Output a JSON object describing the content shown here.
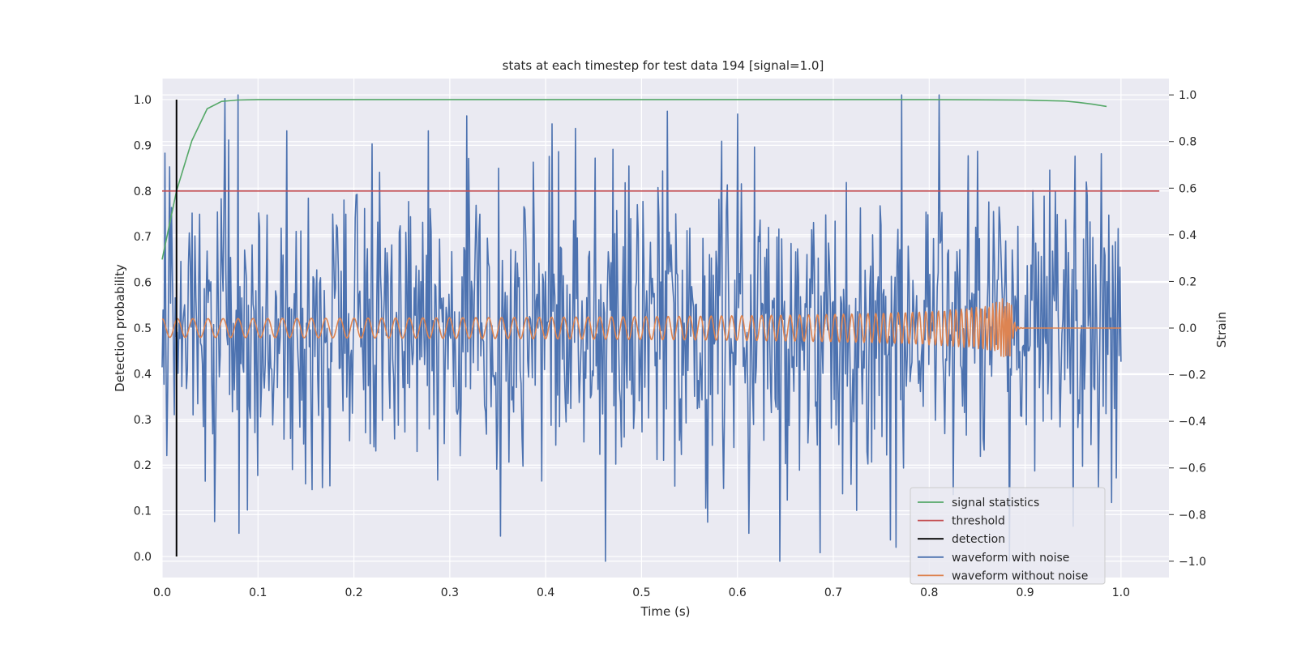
{
  "chart_data": {
    "type": "line",
    "title": "stats at each timestep for test data 194 [signal=1.0]",
    "xlabel": "Time (s)",
    "ylabel": "Detection probability",
    "y2label": "Strain",
    "xlim": [
      0.0,
      1.05
    ],
    "ylim": [
      -0.046,
      1.046
    ],
    "y2lim": [
      -1.07,
      1.07
    ],
    "x_ticks": [
      "0.0",
      "0.1",
      "0.2",
      "0.3",
      "0.4",
      "0.5",
      "0.6",
      "0.7",
      "0.8",
      "0.9",
      "1.0"
    ],
    "y_ticks": [
      "0.0",
      "0.1",
      "0.2",
      "0.3",
      "0.4",
      "0.5",
      "0.6",
      "0.7",
      "0.8",
      "0.9",
      "1.0"
    ],
    "y2_ticks": [
      "−1.0",
      "−0.8",
      "−0.6",
      "−0.4",
      "−0.2",
      "0.0",
      "0.2",
      "0.4",
      "0.6",
      "0.8",
      "1.0"
    ],
    "grid": true,
    "legend_position": "lower-right",
    "series": [
      {
        "name": "signal statistics",
        "axis": "left",
        "color": "#55a868",
        "x": [
          0.0,
          0.015,
          0.031,
          0.047,
          0.062,
          0.078,
          0.1,
          0.2,
          0.3,
          0.4,
          0.5,
          0.6,
          0.7,
          0.8,
          0.9,
          0.94,
          0.955,
          0.97,
          0.985
        ],
        "y": [
          0.65,
          0.8,
          0.91,
          0.98,
          0.996,
          0.999,
          1.0,
          1.0,
          1.0,
          1.0,
          1.0,
          1.0,
          1.0,
          1.0,
          0.999,
          0.997,
          0.994,
          0.99,
          0.985
        ]
      },
      {
        "name": "threshold",
        "axis": "left",
        "color": "#c44e52",
        "x": [
          0.0,
          1.04
        ],
        "y": [
          0.8,
          0.8
        ]
      },
      {
        "name": "detection",
        "axis": "left",
        "color": "#000000",
        "x": [
          0.015,
          0.015
        ],
        "y": [
          0.0,
          1.0
        ]
      },
      {
        "name": "waveform with noise",
        "axis": "right",
        "color": "#4c72b0",
        "generated": "noise",
        "x_range": [
          0.0,
          1.0
        ],
        "y_max": 1.0,
        "y_min": -1.0,
        "spikes": [
          {
            "x": 0.003,
            "y": 0.75
          },
          {
            "x": 0.055,
            "y": -0.83
          },
          {
            "x": 0.08,
            "y": -0.88
          },
          {
            "x": 0.318,
            "y": 0.91
          },
          {
            "x": 0.462,
            "y": -1.0
          },
          {
            "x": 0.527,
            "y": 0.93
          },
          {
            "x": 0.612,
            "y": -0.88
          },
          {
            "x": 0.81,
            "y": 1.0
          },
          {
            "x": 0.95,
            "y": -0.85
          }
        ]
      },
      {
        "name": "waveform without noise",
        "axis": "right",
        "color": "#dd8452",
        "generated": "chirp",
        "x_range": [
          0.0,
          1.0
        ],
        "merger_x": 0.885,
        "amp_start": 0.04,
        "amp_peak": 0.13
      }
    ]
  }
}
